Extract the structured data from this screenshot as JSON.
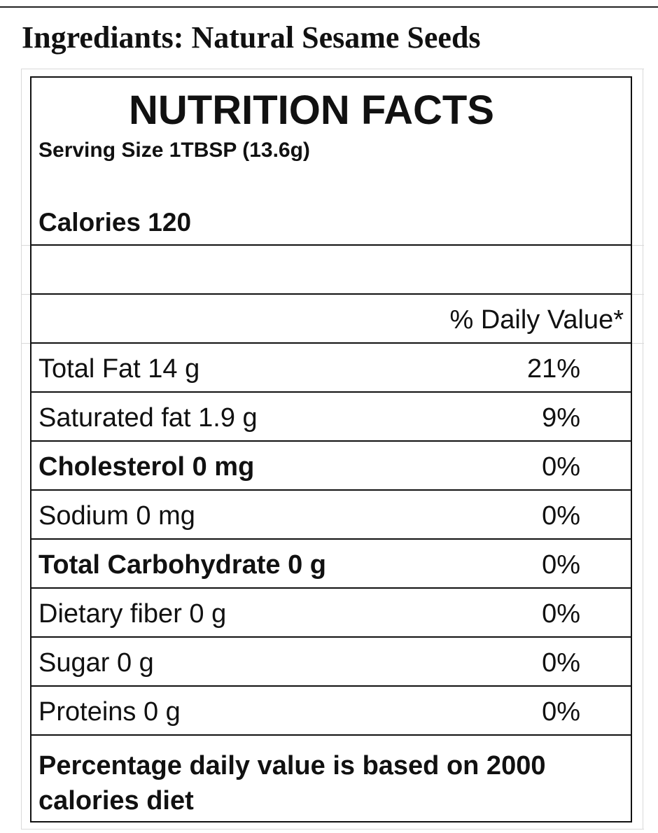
{
  "ingredients": "Ingrediants: Natural Sesame Seeds",
  "label": {
    "title": "NUTRITION FACTS",
    "serving_size": "Serving Size 1TBSP (13.6g)",
    "calories": "Calories 120",
    "daily_value_header": "% Daily Value*",
    "rows": [
      {
        "label": "Total Fat 14 g",
        "percent": "21%",
        "bold": false
      },
      {
        "label": "Saturated fat 1.9 g",
        "percent": "9%",
        "bold": false
      },
      {
        "label": "Cholesterol 0 mg",
        "percent": "0%",
        "bold": true
      },
      {
        "label": "Sodium 0 mg",
        "percent": "0%",
        "bold": false
      },
      {
        "label": "Total Carbohydrate 0 g",
        "percent": "0%",
        "bold": true
      },
      {
        "label": "Dietary fiber 0 g",
        "percent": "0%",
        "bold": false
      },
      {
        "label": "Sugar 0 g",
        "percent": "0%",
        "bold": false
      },
      {
        "label": "Proteins 0 g",
        "percent": "0%",
        "bold": false
      }
    ],
    "footnote": "Percentage daily value is based on 2000 calories diet"
  }
}
